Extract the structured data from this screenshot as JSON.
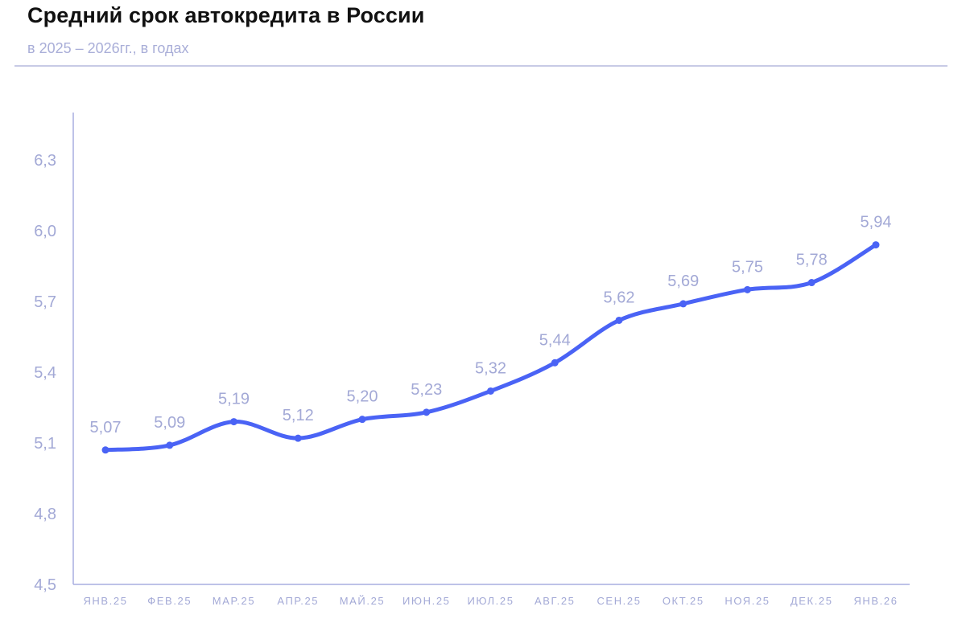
{
  "header": {
    "title": "Средний срок автокредита в России",
    "subtitle": "в 2025 – 2026гг., в годах"
  },
  "colors": {
    "line": "#4a63f5",
    "axis": "#a9aee0",
    "label": "#a3a9d6",
    "divider": "#c8cbe6",
    "title": "#111111"
  },
  "chart_data": {
    "type": "line",
    "title": "Средний срок автокредита в России",
    "subtitle": "в 2025 – 2026гг., в годах",
    "xlabel": "",
    "ylabel": "",
    "categories": [
      "ЯНВ.25",
      "ФЕВ.25",
      "МАР.25",
      "АПР.25",
      "МАЙ.25",
      "ИЮН.25",
      "ИЮЛ.25",
      "АВГ.25",
      "СЕН.25",
      "ОКТ.25",
      "НОЯ.25",
      "ДЕК.25",
      "ЯНВ.26"
    ],
    "values": [
      5.07,
      5.09,
      5.19,
      5.12,
      5.2,
      5.23,
      5.32,
      5.44,
      5.62,
      5.69,
      5.75,
      5.78,
      5.94
    ],
    "value_labels": [
      "5,07",
      "5,09",
      "5,19",
      "5,12",
      "5,20",
      "5,23",
      "5,32",
      "5,44",
      "5,62",
      "5,69",
      "5,75",
      "5,78",
      "5,94"
    ],
    "ylim": [
      4.5,
      6.5
    ],
    "yticks": [
      4.5,
      4.8,
      5.1,
      5.4,
      5.7,
      6.0,
      6.3
    ],
    "ytick_labels": [
      "4,5",
      "4,8",
      "5,1",
      "5,4",
      "5,7",
      "6,0",
      "6,3"
    ],
    "grid": false,
    "legend": null,
    "smooth": true,
    "markers": true,
    "data_labels": true
  }
}
